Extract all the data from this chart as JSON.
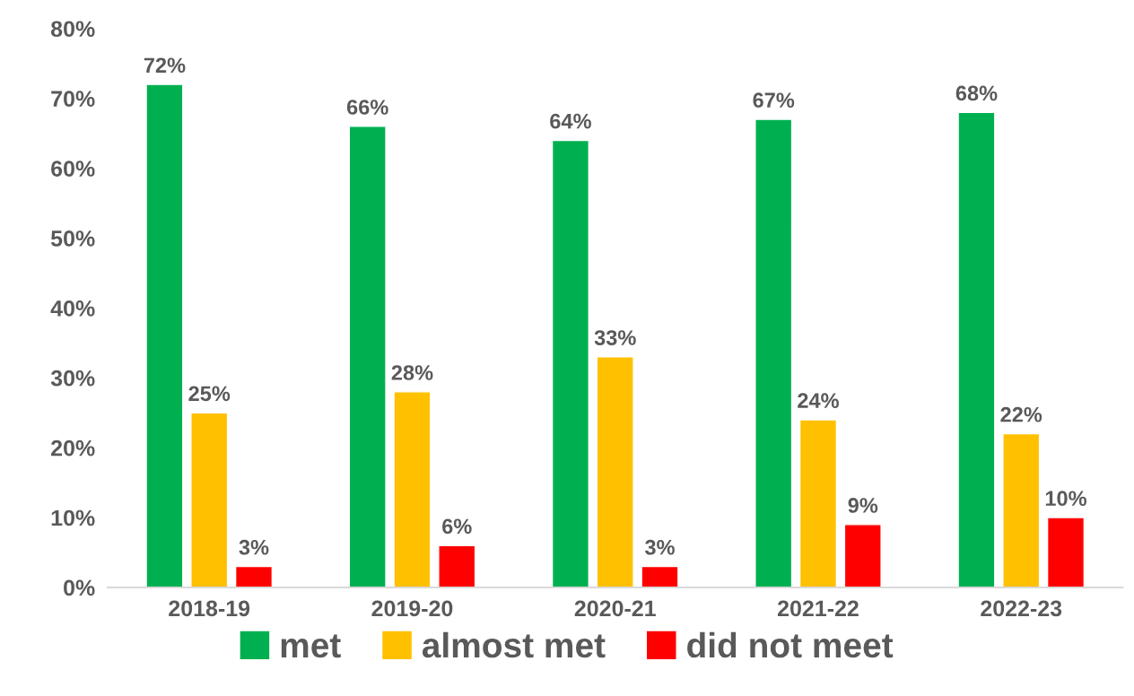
{
  "chart_data": {
    "type": "bar",
    "categories": [
      "2018-19",
      "2019-20",
      "2020-21",
      "2021-22",
      "2022-23"
    ],
    "series": [
      {
        "name": "met",
        "color": "#00b050",
        "values": [
          72,
          66,
          64,
          67,
          68
        ],
        "value_labels": [
          "72%",
          "66%",
          "64%",
          "67%",
          "68%"
        ]
      },
      {
        "name": "almost met",
        "color": "#ffc000",
        "values": [
          25,
          28,
          33,
          24,
          22
        ],
        "value_labels": [
          "25%",
          "28%",
          "33%",
          "24%",
          "22%"
        ]
      },
      {
        "name": "did not meet",
        "color": "#ff0000",
        "values": [
          3,
          6,
          3,
          9,
          10
        ],
        "value_labels": [
          "3%",
          "6%",
          "3%",
          "9%",
          "10%"
        ]
      }
    ],
    "ylim": [
      0,
      80
    ],
    "yticks": [
      {
        "value": 0,
        "label": "0%"
      },
      {
        "value": 10,
        "label": "10%"
      },
      {
        "value": 20,
        "label": "20%"
      },
      {
        "value": 30,
        "label": "30%"
      },
      {
        "value": 40,
        "label": "40%"
      },
      {
        "value": 50,
        "label": "50%"
      },
      {
        "value": 60,
        "label": "60%"
      },
      {
        "value": 70,
        "label": "70%"
      },
      {
        "value": 80,
        "label": "80%"
      }
    ],
    "grid": false,
    "legend": "bottom"
  }
}
